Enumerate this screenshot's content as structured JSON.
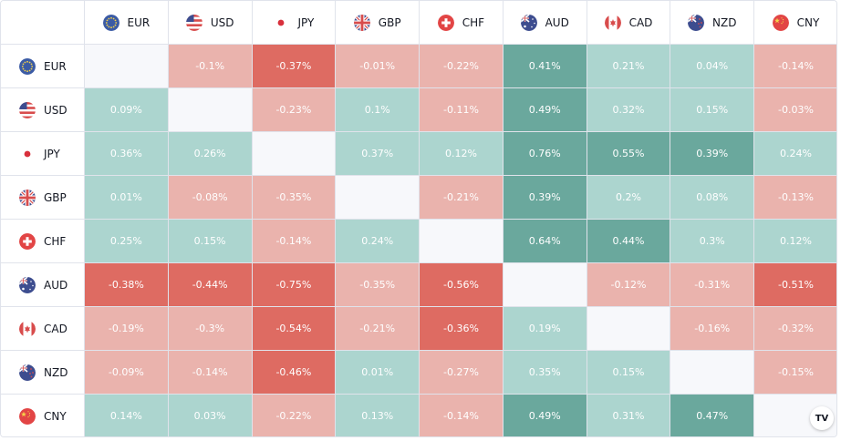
{
  "currencies": [
    "EUR",
    "USD",
    "JPY",
    "GBP",
    "CHF",
    "AUD",
    "CAD",
    "NZD",
    "CNY"
  ],
  "flags": [
    "eu-flag-icon",
    "us-flag-icon",
    "jp-flag-icon",
    "gb-flag-icon",
    "ch-flag-icon",
    "au-flag-icon",
    "ca-flag-icon",
    "nz-flag-icon",
    "cn-flag-icon"
  ],
  "colors": {
    "positive_light": "#acd5cf",
    "positive_mid": "#6aa89d",
    "negative_light": "#eab3ad",
    "negative_mid": "#de6b62",
    "empty": "#f7f8fb",
    "border": "#e0e3eb"
  },
  "chart_data": {
    "type": "heatmap",
    "rows": [
      "EUR",
      "USD",
      "JPY",
      "GBP",
      "CHF",
      "AUD",
      "CAD",
      "NZD",
      "CNY"
    ],
    "columns": [
      "EUR",
      "USD",
      "JPY",
      "GBP",
      "CHF",
      "AUD",
      "CAD",
      "NZD",
      "CNY"
    ],
    "values": [
      [
        null,
        -0.1,
        -0.37,
        -0.01,
        -0.22,
        0.41,
        0.21,
        0.04,
        -0.14
      ],
      [
        0.09,
        null,
        -0.23,
        0.1,
        -0.11,
        0.49,
        0.32,
        0.15,
        -0.03
      ],
      [
        0.36,
        0.26,
        null,
        0.37,
        0.12,
        0.76,
        0.55,
        0.39,
        0.24
      ],
      [
        0.01,
        -0.08,
        -0.35,
        null,
        -0.21,
        0.39,
        0.2,
        0.08,
        -0.13
      ],
      [
        0.25,
        0.15,
        -0.14,
        0.24,
        null,
        0.64,
        0.44,
        0.3,
        0.12
      ],
      [
        -0.38,
        -0.44,
        -0.75,
        -0.35,
        -0.56,
        null,
        -0.12,
        -0.31,
        -0.51
      ],
      [
        -0.19,
        -0.3,
        -0.54,
        -0.21,
        -0.36,
        0.19,
        null,
        -0.16,
        -0.32
      ],
      [
        -0.09,
        -0.14,
        -0.46,
        0.01,
        -0.27,
        0.35,
        0.15,
        null,
        -0.15
      ],
      [
        0.14,
        0.03,
        -0.22,
        0.13,
        -0.14,
        0.49,
        0.31,
        0.47,
        null
      ]
    ],
    "cell_labels": [
      [
        "",
        "-0.1%",
        "-0.37%",
        "-0.01%",
        "-0.22%",
        "0.41%",
        "0.21%",
        "0.04%",
        "-0.14%"
      ],
      [
        "0.09%",
        "",
        "-0.23%",
        "0.1%",
        "-0.11%",
        "0.49%",
        "0.32%",
        "0.15%",
        "-0.03%"
      ],
      [
        "0.36%",
        "0.26%",
        "",
        "0.37%",
        "0.12%",
        "0.76%",
        "0.55%",
        "0.39%",
        "0.24%"
      ],
      [
        "0.01%",
        "-0.08%",
        "-0.35%",
        "",
        "-0.21%",
        "0.39%",
        "0.2%",
        "0.08%",
        "-0.13%"
      ],
      [
        "0.25%",
        "0.15%",
        "-0.14%",
        "0.24%",
        "",
        "0.64%",
        "0.44%",
        "0.3%",
        "0.12%"
      ],
      [
        "-0.38%",
        "-0.44%",
        "-0.75%",
        "-0.35%",
        "-0.56%",
        "",
        "-0.12%",
        "-0.31%",
        "-0.51%"
      ],
      [
        "-0.19%",
        "-0.3%",
        "-0.54%",
        "-0.21%",
        "-0.36%",
        "0.19%",
        "",
        "-0.16%",
        "-0.32%"
      ],
      [
        "-0.09%",
        "-0.14%",
        "-0.46%",
        "0.01%",
        "-0.27%",
        "0.35%",
        "0.15%",
        "",
        "-0.15%"
      ],
      [
        "0.14%",
        "0.03%",
        "-0.22%",
        "0.13%",
        "-0.14%",
        "0.49%",
        "0.31%",
        "0.47%",
        ""
      ]
    ]
  },
  "logo": {
    "text": "TV",
    "icon": "tradingview-logo-icon"
  }
}
